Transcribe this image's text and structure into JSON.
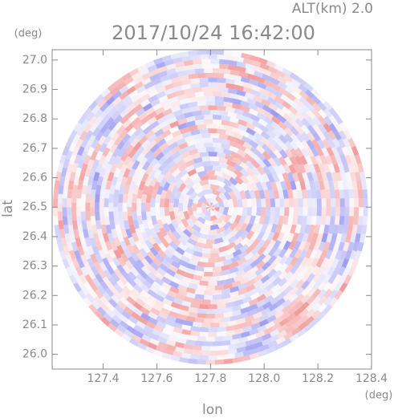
{
  "chart_data": {
    "type": "radar-ppi",
    "title": "2017/10/24 16:42:00",
    "subtitle": "ALT(km) 2.0",
    "x_label": "lon",
    "y_label": "lat",
    "x_unit": "(deg)",
    "y_unit": "(deg)",
    "xlim": [
      127.21,
      128.4
    ],
    "ylim": [
      25.95,
      27.035
    ],
    "xticks": [
      {
        "value": 127.4,
        "label": "127.4"
      },
      {
        "value": 127.6,
        "label": "127.6"
      },
      {
        "value": 127.8,
        "label": "127.8"
      },
      {
        "value": 128.0,
        "label": "128.0"
      },
      {
        "value": 128.2,
        "label": "128.2"
      },
      {
        "value": 128.4,
        "label": "128.4"
      }
    ],
    "yticks": [
      {
        "value": 26.0,
        "label": "26.0"
      },
      {
        "value": 26.1,
        "label": "26.1"
      },
      {
        "value": 26.2,
        "label": "26.2"
      },
      {
        "value": 26.3,
        "label": "26.3"
      },
      {
        "value": 26.4,
        "label": "26.4"
      },
      {
        "value": 26.5,
        "label": "26.5"
      },
      {
        "value": 26.6,
        "label": "26.6"
      },
      {
        "value": 26.7,
        "label": "26.7"
      },
      {
        "value": 26.8,
        "label": "26.8"
      },
      {
        "value": 26.9,
        "label": "26.9"
      },
      {
        "value": 27.0,
        "label": "27.0"
      }
    ],
    "center": [
      127.8,
      26.5
    ],
    "positive_color": "#f08c8c",
    "negative_color": "#8c8cf0",
    "axis_color": "#8a8a8a"
  }
}
